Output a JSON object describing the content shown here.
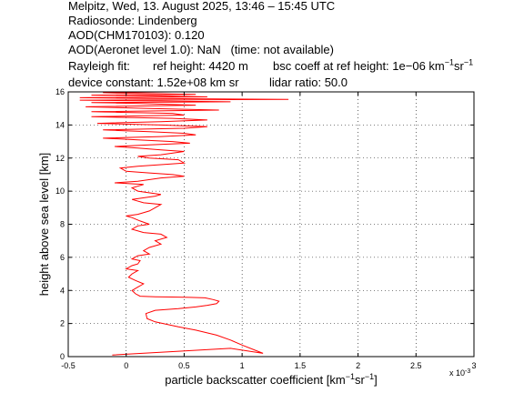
{
  "header": {
    "line1": "Melpitz, Wed, 13. August 2025, 13:46 – 15:45 UTC",
    "line2": "Radiosonde: Lindenberg",
    "line3": "AOD(CHM170103): 0.120",
    "line4": "AOD(Aeronet level 1.0): NaN   (time: not available)",
    "rayleigh_label": "Rayleigh fit:",
    "ref_height": "ref height: 4420 m",
    "bsc_coeff_prefix": "bsc coeff at ref height: 1e−06 km",
    "bsc_sup1": "−1",
    "bsc_mid": "sr",
    "bsc_sup2": "−1",
    "device_constant": "device constant: 1.52e+08 km sr",
    "lidar_ratio": "lidar ratio: 50.0"
  },
  "axes": {
    "ylabel": "height above sea level [km]",
    "xlabel_prefix": "particle backscatter coefficient [km",
    "xlabel_sup1": "−1",
    "xlabel_mid": "sr",
    "xlabel_sup2": "−1",
    "xlabel_suffix": "]",
    "x_multiplier_base": "x 10",
    "x_multiplier_exp": "-3"
  },
  "chart_data": {
    "type": "line",
    "xlim": [
      -0.5,
      3
    ],
    "ylim": [
      0,
      16
    ],
    "xticks": [
      -0.5,
      0,
      0.5,
      1,
      1.5,
      2,
      2.5,
      3
    ],
    "xtick_labels": [
      "-0.5",
      "0",
      "0.5",
      "1",
      "1.5",
      "2",
      "2.5",
      "3"
    ],
    "yticks": [
      0,
      2,
      4,
      6,
      8,
      10,
      12,
      14,
      16
    ],
    "ytick_labels": [
      "0",
      "2",
      "4",
      "6",
      "8",
      "10",
      "12",
      "14",
      "16"
    ],
    "grid": true,
    "line_color": "#ff0000",
    "series": [
      {
        "x": [
          -0.12,
          0.4,
          0.9,
          1.18,
          1.0,
          0.9,
          0.78,
          0.6,
          0.45,
          0.35,
          0.25,
          0.18,
          0.17,
          0.25,
          0.45,
          0.6,
          0.7,
          0.78,
          0.8,
          0.75,
          0.68,
          0.55,
          0.4,
          0.25,
          0.12,
          0.08,
          0.05,
          0.1,
          0.15,
          0.08,
          0.02,
          0.05,
          0.1,
          0.0,
          0.05,
          0.1,
          0.12,
          0.05,
          0.1,
          0.2,
          0.15,
          0.2,
          0.3,
          0.25,
          0.35,
          0.3,
          0.15,
          0.05,
          0.1,
          0.2,
          0.12,
          0.05,
          0.0,
          0.1,
          0.2,
          0.25,
          0.3,
          0.15,
          0.05,
          0.25,
          0.3,
          0.1,
          0.05,
          0.15,
          -0.1,
          0.1,
          0.3,
          0.5,
          0.4,
          0.2,
          0.0,
          -0.05,
          0.1,
          0.3,
          0.5,
          0.45,
          0.2,
          0.1,
          0.3,
          0.5,
          0.3,
          0.1,
          -0.1,
          0.2,
          0.55,
          0.4,
          0.1,
          -0.2,
          0.3,
          0.6,
          0.5,
          0.2,
          -0.2,
          0.5,
          0.7,
          0.3,
          -0.25,
          0.3,
          0.7,
          0.4,
          -0.3,
          0.5,
          0.4,
          -0.3,
          0.8,
          0.2,
          -0.35,
          0.6,
          0.1,
          -0.3,
          0.9,
          0.3,
          -0.4,
          1.4,
          0.2,
          -0.4,
          0.7,
          0.3,
          -0.3,
          0.6,
          0.1,
          -0.2,
          0.4,
          0.1
        ],
        "y": [
          0.1,
          0.3,
          0.5,
          0.2,
          0.7,
          1.0,
          1.3,
          1.6,
          1.8,
          1.95,
          2.1,
          2.3,
          2.6,
          2.8,
          2.9,
          3.0,
          3.1,
          3.2,
          3.35,
          3.45,
          3.55,
          3.58,
          3.6,
          3.62,
          3.65,
          3.8,
          4.0,
          4.2,
          4.4,
          4.6,
          4.8,
          5.0,
          5.2,
          5.3,
          5.5,
          5.6,
          5.8,
          5.9,
          6.1,
          6.2,
          6.4,
          6.6,
          6.8,
          7.0,
          7.2,
          7.4,
          7.5,
          7.7,
          7.9,
          8.0,
          8.2,
          8.4,
          8.5,
          8.6,
          8.8,
          9.0,
          9.2,
          9.3,
          9.5,
          9.7,
          9.8,
          10.0,
          10.2,
          10.4,
          10.5,
          10.6,
          10.8,
          10.9,
          11.0,
          11.1,
          11.2,
          11.4,
          11.5,
          11.6,
          11.7,
          11.9,
          12.0,
          12.1,
          12.2,
          12.4,
          12.5,
          12.6,
          12.7,
          12.8,
          12.9,
          13.0,
          13.1,
          13.2,
          13.3,
          13.4,
          13.5,
          13.6,
          13.7,
          13.8,
          13.9,
          14.0,
          14.1,
          14.2,
          14.3,
          14.4,
          14.5,
          14.6,
          14.7,
          14.8,
          14.9,
          15.0,
          15.1,
          15.2,
          15.3,
          15.35,
          15.4,
          15.45,
          15.5,
          15.55,
          15.6,
          15.65,
          15.7,
          15.75,
          15.8,
          15.85,
          15.9,
          15.95,
          16.0,
          16.0
        ]
      }
    ]
  }
}
